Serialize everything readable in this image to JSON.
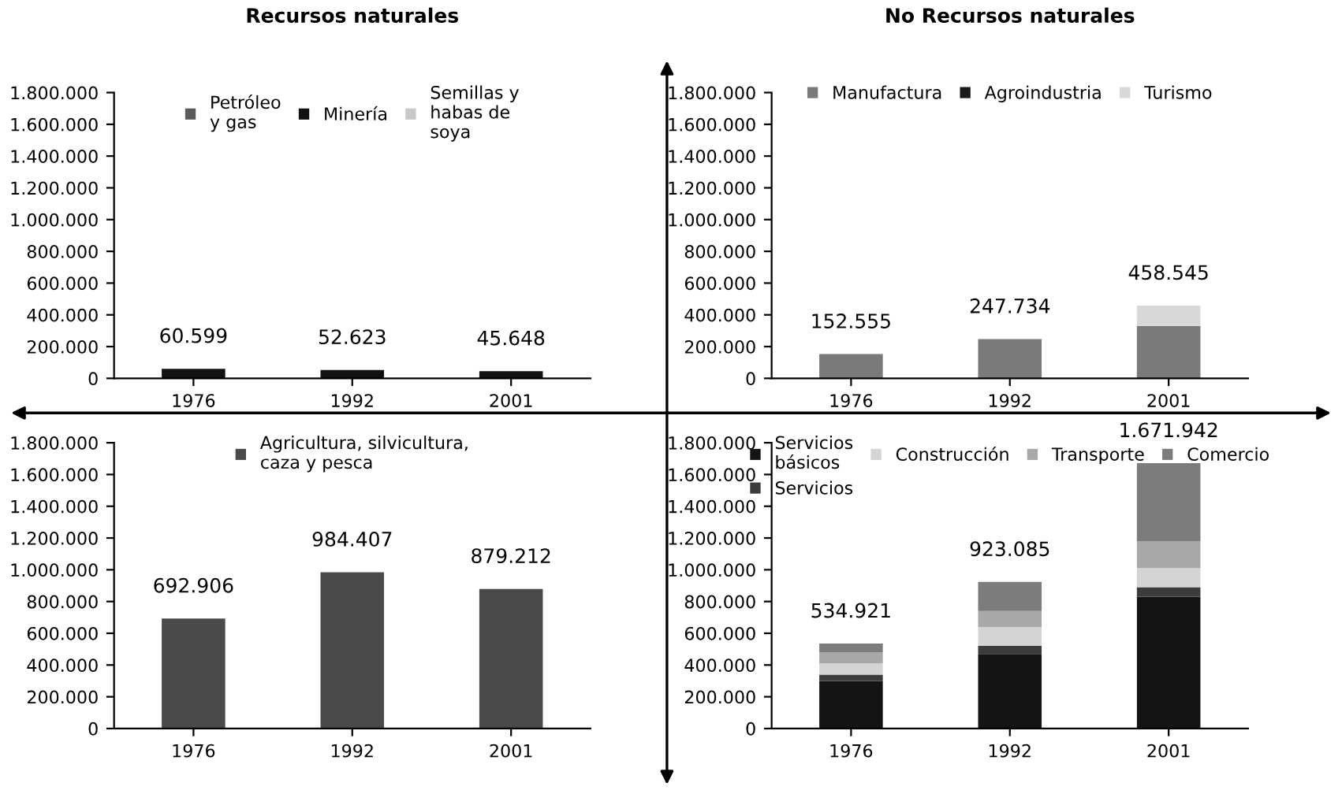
{
  "chart_data": [
    {
      "type": "bar",
      "title": "Recursos naturales",
      "stacked": true,
      "categories": [
        "1976",
        "1992",
        "2001"
      ],
      "legend": "top",
      "series": [
        {
          "name": "Petróleo\ny gas",
          "color": "#5a5a5a",
          "values": [
            null,
            null,
            null
          ]
        },
        {
          "name": "Minería",
          "color": "#111111",
          "values": [
            60599,
            52623,
            45648
          ]
        },
        {
          "name": "Semillas y\nhabas de\nsoya",
          "color": "#c8c8c8",
          "values": [
            null,
            null,
            null
          ]
        }
      ],
      "totals": [
        "60.599",
        "52.623",
        "45.648"
      ],
      "ylim": [
        0,
        1800000
      ],
      "yticks": [
        {
          "value": 0,
          "label": "0"
        },
        {
          "value": 200000,
          "label": "200.000"
        },
        {
          "value": 400000,
          "label": "400.000"
        },
        {
          "value": 600000,
          "label": "600.000"
        },
        {
          "value": 800000,
          "label": "800.000"
        },
        {
          "value": 1000000,
          "label": "1.000.000"
        },
        {
          "value": 1200000,
          "label": "1.200.000"
        },
        {
          "value": 1400000,
          "label": "1.400.000"
        },
        {
          "value": 1600000,
          "label": "1.600.000"
        },
        {
          "value": 1800000,
          "label": "1.800.000"
        }
      ]
    },
    {
      "type": "bar",
      "title": "No Recursos naturales",
      "stacked": true,
      "categories": [
        "1976",
        "1992",
        "2001"
      ],
      "legend": "top",
      "series": [
        {
          "name": "Manufactura",
          "color": "#7a7a7a",
          "values": [
            152555,
            247734,
            330000
          ]
        },
        {
          "name": "Agroindustria",
          "color": "#1a1a1a",
          "values": [
            null,
            null,
            null
          ]
        },
        {
          "name": "Turismo",
          "color": "#d8d8d8",
          "values": [
            null,
            null,
            128545
          ]
        }
      ],
      "totals": [
        "152.555",
        "247.734",
        "458.545"
      ],
      "ylim": [
        0,
        1800000
      ],
      "yticks": [
        {
          "value": 0,
          "label": "0"
        },
        {
          "value": 200000,
          "label": "200.000"
        },
        {
          "value": 400000,
          "label": "400.000"
        },
        {
          "value": 600000,
          "label": "600.000"
        },
        {
          "value": 800000,
          "label": "800.000"
        },
        {
          "value": 1000000,
          "label": "1.000.000"
        },
        {
          "value": 1200000,
          "label": "1.200.000"
        },
        {
          "value": 1400000,
          "label": "1.400.000"
        },
        {
          "value": 1600000,
          "label": "1.600.000"
        },
        {
          "value": 1800000,
          "label": "1.800.000"
        }
      ]
    },
    {
      "type": "bar",
      "categories": [
        "1976",
        "1992",
        "2001"
      ],
      "legend": "top",
      "series": [
        {
          "name": "Agricultura, silvicultura,\ncaza y pesca",
          "color": "#4a4a4a",
          "values": [
            692906,
            984407,
            879212
          ]
        }
      ],
      "value_labels": [
        "692.906",
        "984.407",
        "879.212"
      ],
      "ylim": [
        0,
        1800000
      ],
      "yticks": [
        {
          "value": 0,
          "label": "0"
        },
        {
          "value": 200000,
          "label": "200.000"
        },
        {
          "value": 400000,
          "label": "400.000"
        },
        {
          "value": 600000,
          "label": "600.000"
        },
        {
          "value": 800000,
          "label": "800.000"
        },
        {
          "value": 1000000,
          "label": "1.000.000"
        },
        {
          "value": 1200000,
          "label": "1.200.000"
        },
        {
          "value": 1400000,
          "label": "1.400.000"
        },
        {
          "value": 1600000,
          "label": "1.600.000"
        },
        {
          "value": 1800000,
          "label": "1.800.000"
        }
      ]
    },
    {
      "type": "bar",
      "stacked": true,
      "categories": [
        "1976",
        "1992",
        "2001"
      ],
      "legend": "top",
      "series": [
        {
          "name": "Servicios\nbásicos",
          "color": "#141414",
          "values": [
            300000,
            470000,
            830000
          ]
        },
        {
          "name": "Servicios",
          "color": "#3c3c3c",
          "values": [
            40000,
            50000,
            60000
          ]
        },
        {
          "name": "Construcción",
          "color": "#d4d4d4",
          "values": [
            70000,
            120000,
            120000
          ]
        },
        {
          "name": "Transporte",
          "color": "#a8a8a8",
          "values": [
            70000,
            100000,
            170000
          ]
        },
        {
          "name": "Comercio",
          "color": "#7c7c7c",
          "values": [
            54921,
            183085,
            491942
          ]
        }
      ],
      "totals": [
        "534.921",
        "923.085",
        "1.671.942"
      ],
      "ylim": [
        0,
        1800000
      ],
      "yticks": [
        {
          "value": 0,
          "label": "0"
        },
        {
          "value": 200000,
          "label": "200.000"
        },
        {
          "value": 400000,
          "label": "400.000"
        },
        {
          "value": 600000,
          "label": "600.000"
        },
        {
          "value": 800000,
          "label": "800.000"
        },
        {
          "value": 1000000,
          "label": "1.000.000"
        },
        {
          "value": 1200000,
          "label": "1.200.000"
        },
        {
          "value": 1400000,
          "label": "1.400.000"
        },
        {
          "value": 1600000,
          "label": "1.600.000"
        },
        {
          "value": 1800000,
          "label": "1.800.000"
        }
      ]
    }
  ]
}
